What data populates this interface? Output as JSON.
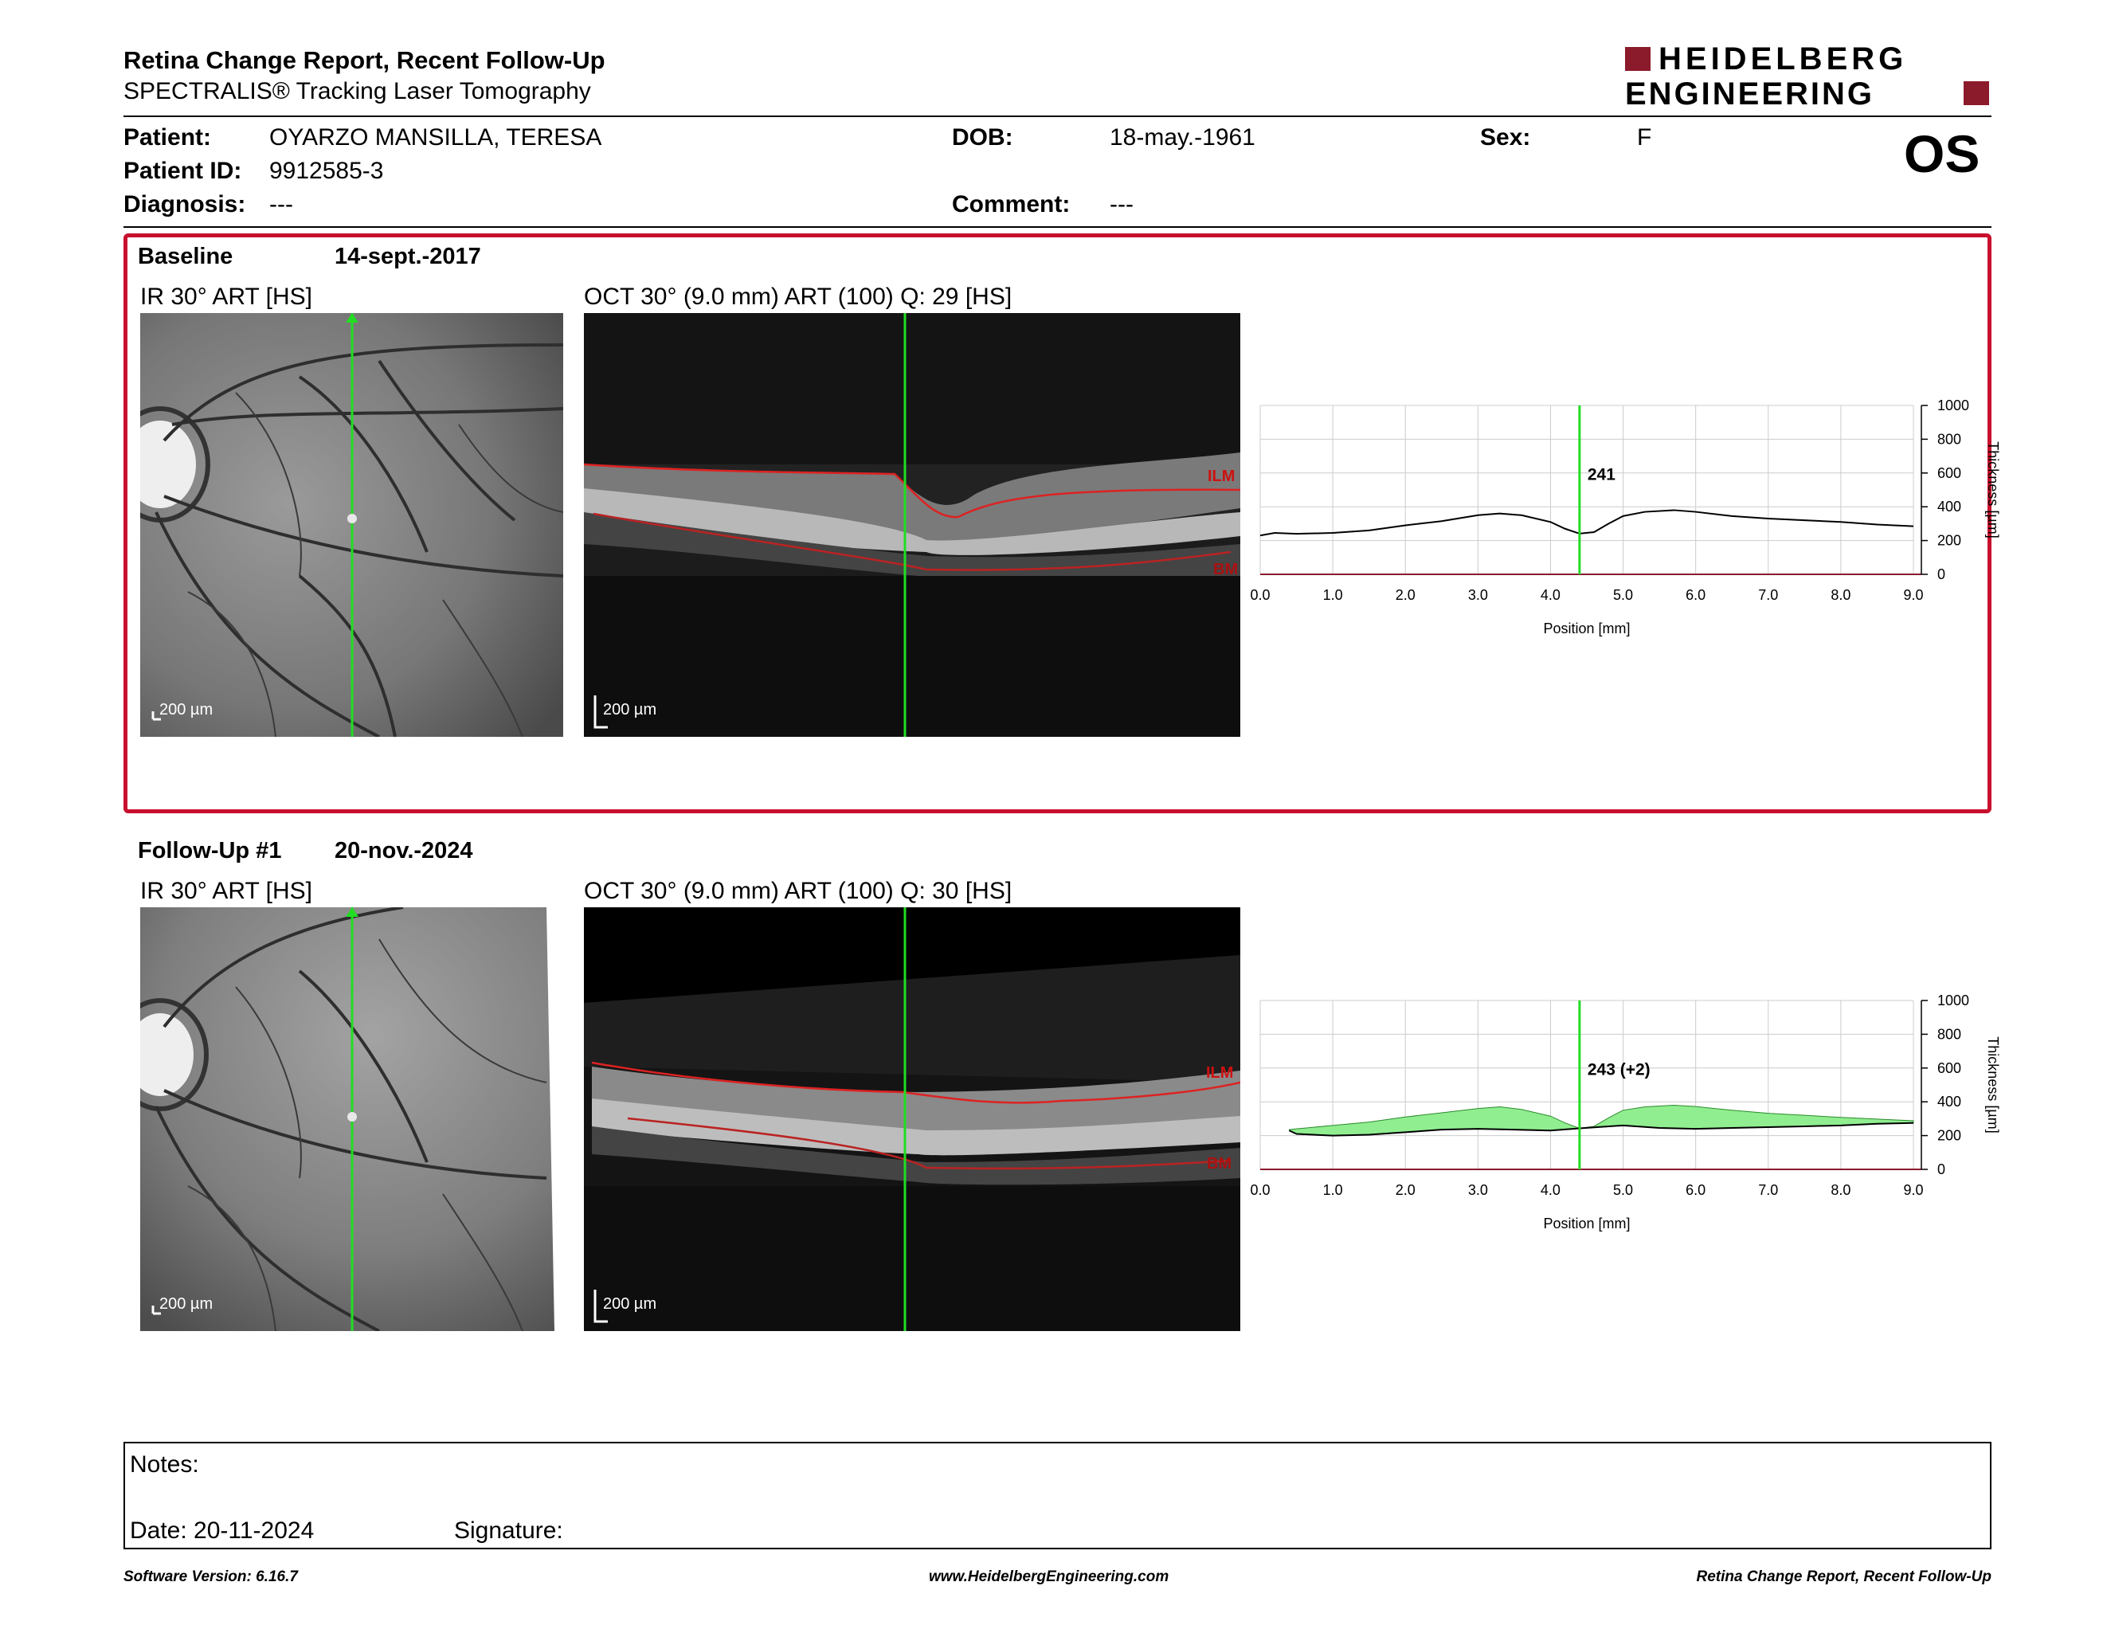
{
  "header": {
    "title": "Retina Change Report, Recent Follow-Up",
    "subtitle": "SPECTRALIS® Tracking Laser Tomography",
    "logo_line1": "HEIDELBERG",
    "logo_line2": "ENGINEERING",
    "brand_color": "#8b1a2b"
  },
  "patient": {
    "patient_label": "Patient:",
    "patient_value": "OYARZO MANSILLA, TERESA",
    "id_label": "Patient ID:",
    "id_value": "9912585-3",
    "diagnosis_label": "Diagnosis:",
    "diagnosis_value": "---",
    "dob_label": "DOB:",
    "dob_value": "18-may.-1961",
    "comment_label": "Comment:",
    "comment_value": "---",
    "sex_label": "Sex:",
    "sex_value": "F",
    "eye": "OS"
  },
  "baseline": {
    "label": "Baseline",
    "date": "14-sept.-2017",
    "ir_caption": "IR 30° ART [HS]",
    "oct_caption": "OCT 30° (9.0 mm) ART (100) Q: 29 [HS]",
    "scale_label": "200 µm",
    "ilm_label": "ILM",
    "bm_label": "BM"
  },
  "followup": {
    "label": "Follow-Up #1",
    "date": "20-nov.-2024",
    "ir_caption": "IR 30° ART [HS]",
    "oct_caption": "OCT 30° (9.0 mm) ART (100) Q: 30 [HS]",
    "scale_label": "200 µm",
    "ilm_label": "ILM",
    "bm_label": "BM"
  },
  "chart_data": [
    {
      "type": "line",
      "xlabel": "Position [mm]",
      "ylabel": "Thickness [µm]",
      "xlim": [
        0,
        9
      ],
      "ylim": [
        0,
        1000
      ],
      "xticks": [
        "0.0",
        "1.0",
        "2.0",
        "3.0",
        "4.0",
        "5.0",
        "6.0",
        "7.0",
        "8.0",
        "9.0"
      ],
      "yticks": [
        "0",
        "200",
        "400",
        "600",
        "800",
        "1000"
      ],
      "grid": true,
      "cursor_x": 4.4,
      "cursor_label": "241",
      "series": [
        {
          "x": [
            0.0,
            0.2,
            0.5,
            1.0,
            1.5,
            2.0,
            2.5,
            3.0,
            3.3,
            3.6,
            4.0,
            4.2,
            4.4,
            4.6,
            4.8,
            5.0,
            5.3,
            5.7,
            6.0,
            6.5,
            7.0,
            7.5,
            8.0,
            8.5,
            9.0
          ],
          "values": [
            230,
            245,
            240,
            245,
            260,
            290,
            315,
            350,
            360,
            350,
            310,
            270,
            241,
            250,
            300,
            345,
            370,
            380,
            370,
            345,
            330,
            320,
            310,
            295,
            285
          ]
        }
      ]
    },
    {
      "type": "area",
      "xlabel": "Position [mm]",
      "ylabel": "Thickness [µm]",
      "xlim": [
        0,
        9
      ],
      "ylim": [
        0,
        1000
      ],
      "xticks": [
        "0.0",
        "1.0",
        "2.0",
        "3.0",
        "4.0",
        "5.0",
        "6.0",
        "7.0",
        "8.0",
        "9.0"
      ],
      "yticks": [
        "0",
        "200",
        "400",
        "600",
        "800",
        "1000"
      ],
      "grid": true,
      "cursor_x": 4.4,
      "cursor_label": "243 (+2)",
      "fill_color": "#90ee90",
      "series": [
        {
          "x": [
            0.4,
            0.5,
            1.0,
            1.5,
            2.0,
            2.5,
            3.0,
            3.3,
            3.6,
            4.0,
            4.2,
            4.4,
            4.6,
            4.8,
            5.0,
            5.3,
            5.7,
            6.0,
            6.5,
            7.0,
            7.5,
            8.0,
            8.5,
            9.0
          ],
          "values": [
            235,
            240,
            260,
            280,
            310,
            335,
            360,
            370,
            355,
            315,
            275,
            243,
            255,
            305,
            350,
            370,
            380,
            372,
            350,
            332,
            320,
            308,
            298,
            288
          ]
        },
        {
          "x": [
            0.4,
            0.5,
            1.0,
            1.5,
            2.0,
            2.5,
            3.0,
            3.5,
            4.0,
            4.4,
            5.0,
            5.5,
            6.0,
            6.5,
            7.0,
            7.5,
            8.0,
            8.5,
            9.0
          ],
          "values": [
            230,
            210,
            200,
            205,
            220,
            235,
            240,
            235,
            230,
            243,
            260,
            245,
            240,
            245,
            250,
            255,
            260,
            270,
            275
          ]
        }
      ]
    }
  ],
  "notes": {
    "notes_label": "Notes:",
    "date_label": "Date: 20-11-2024",
    "signature_label": "Signature:"
  },
  "footer": {
    "left": "Software Version: 6.16.7",
    "center": "www.HeidelbergEngineering.com",
    "right": "Retina Change Report, Recent Follow-Up"
  }
}
